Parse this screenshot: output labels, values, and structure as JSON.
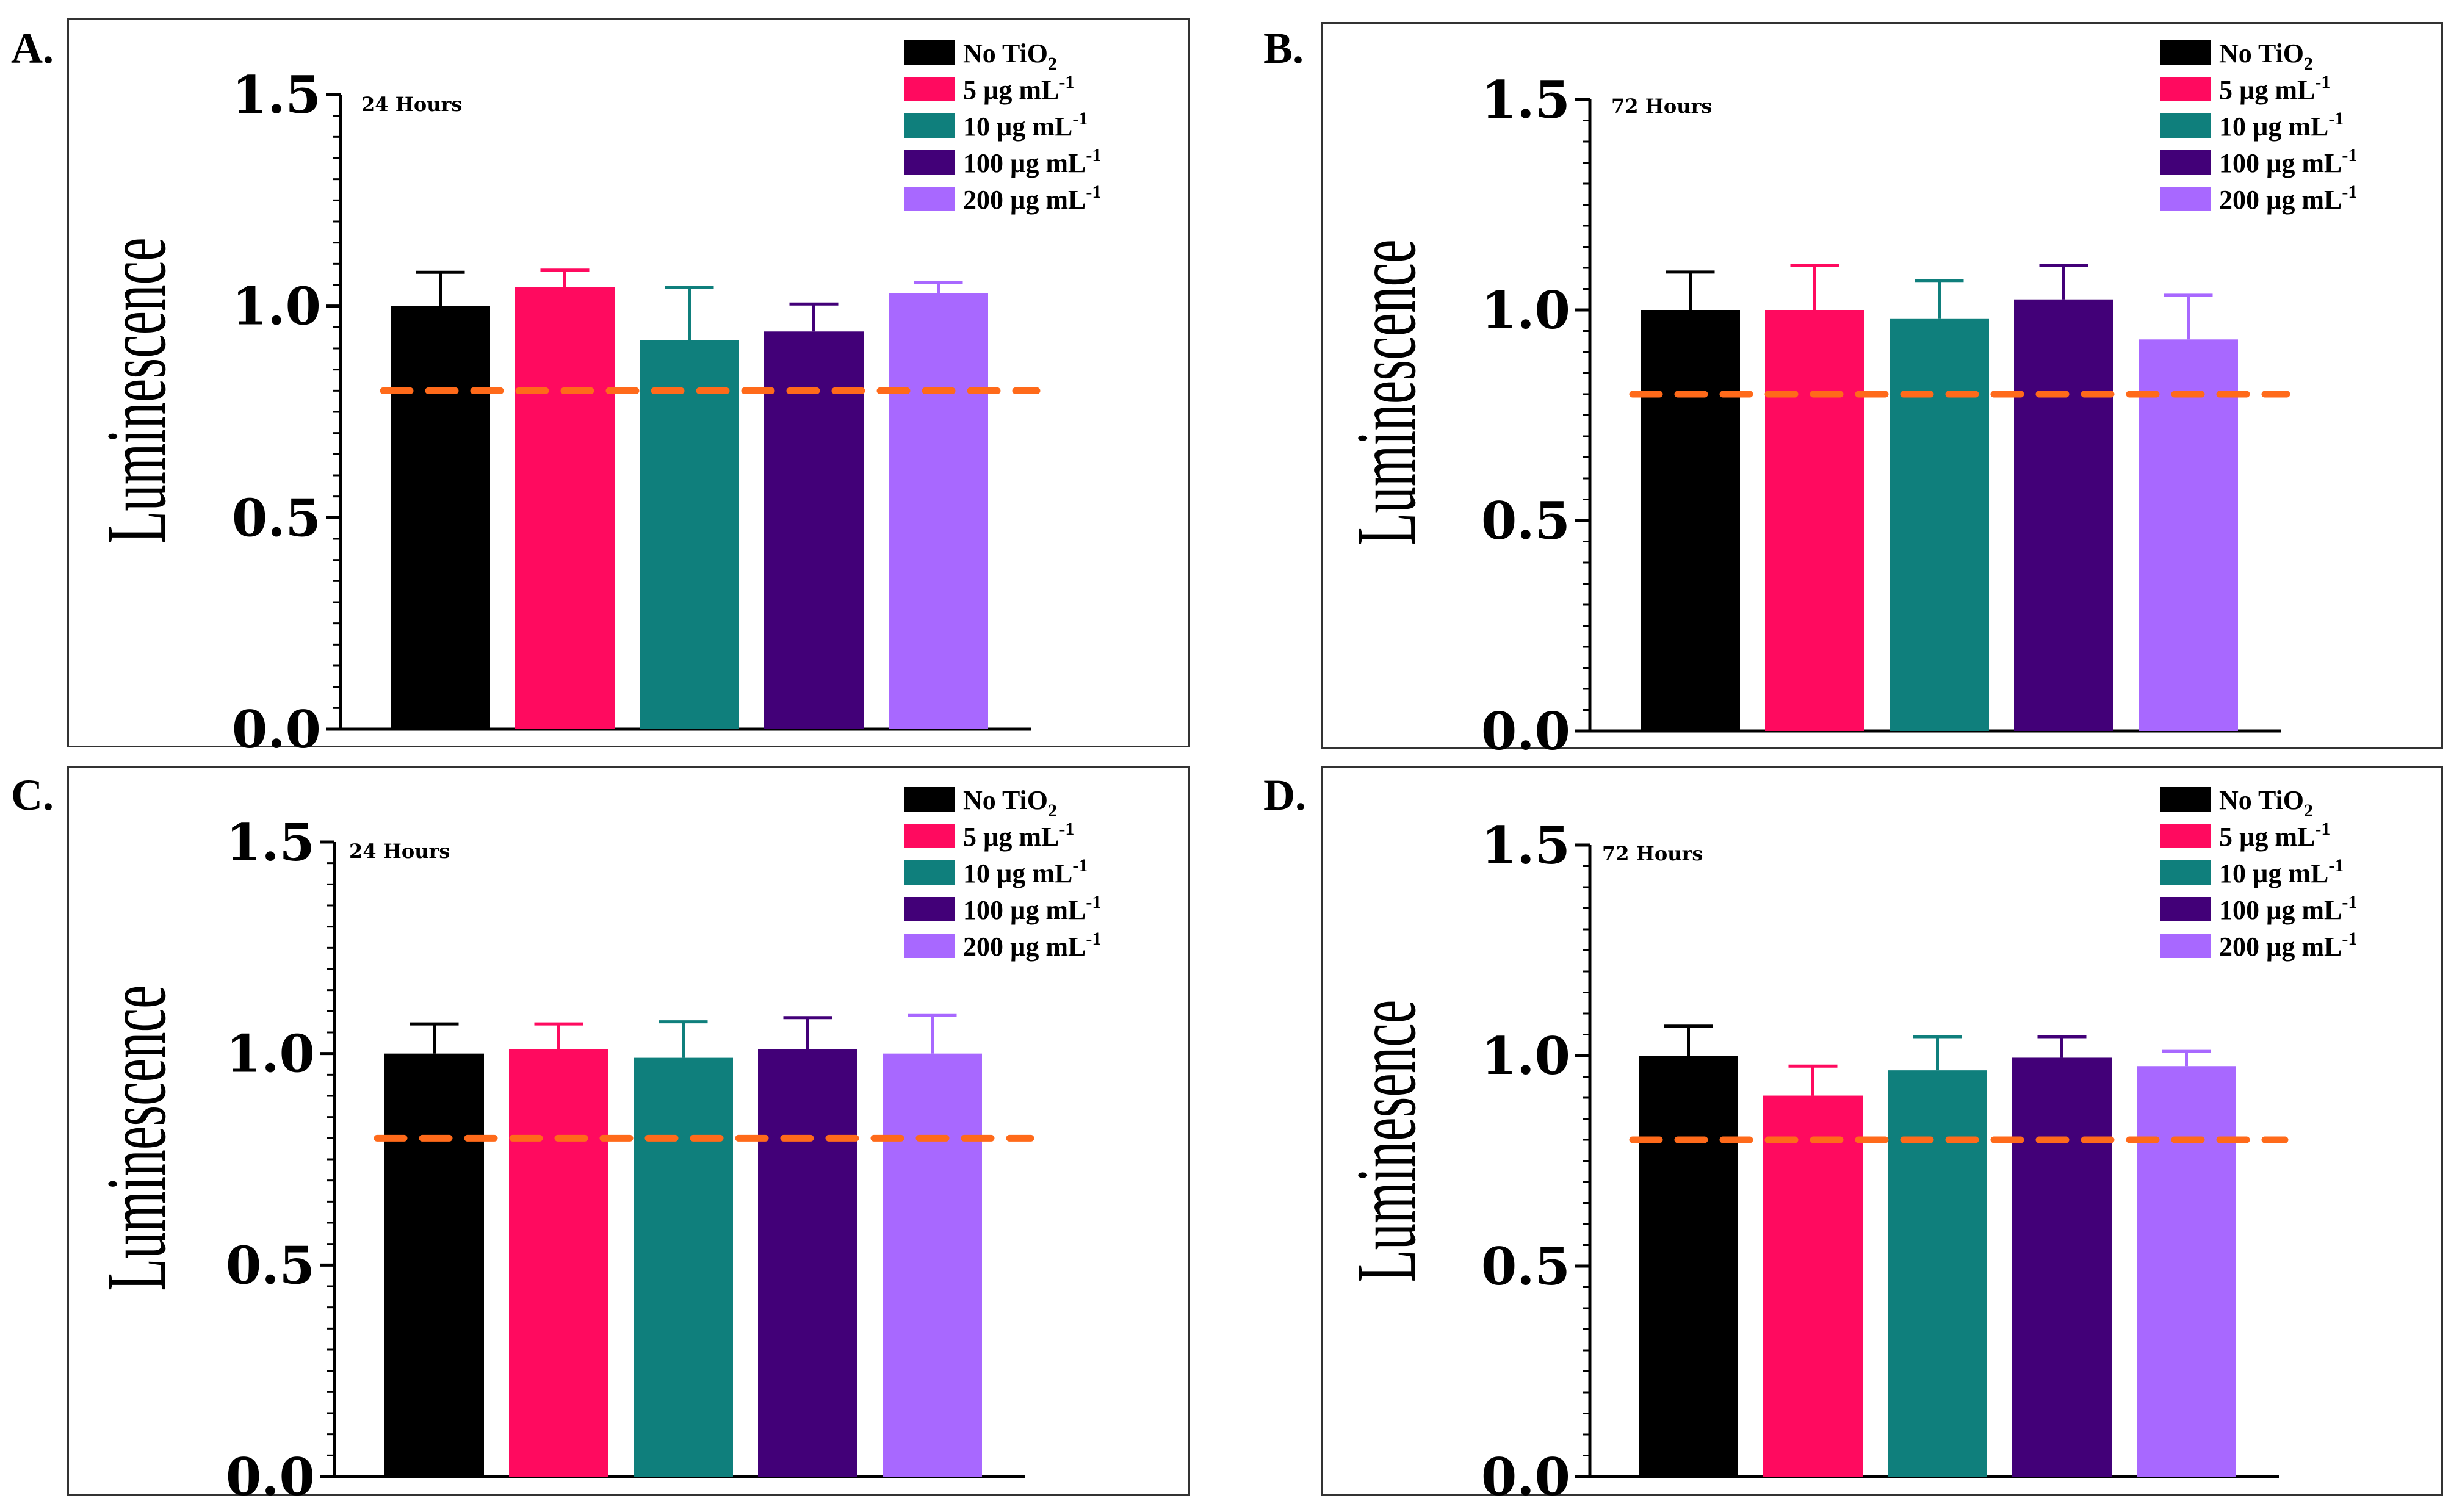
{
  "panels": [
    {
      "letter": "A.",
      "frame": "a"
    },
    {
      "letter": "B.",
      "frame": "b"
    },
    {
      "letter": "C.",
      "frame": "c"
    },
    {
      "letter": "D.",
      "frame": "d"
    }
  ],
  "colors": {
    "no_tio2": "#000000",
    "5ug": "#ff0a5f",
    "10ug": "#0f7f7c",
    "100ug": "#420078",
    "200ug": "#a868ff",
    "threshold_line": "#ff6a1a"
  },
  "legend_labels": [
    {
      "main": "No TiO",
      "sub": "2",
      "sup": ""
    },
    {
      "main": "5 µg mL",
      "sub": "",
      "sup": "-1"
    },
    {
      "main": "10 µg mL",
      "sub": "",
      "sup": "-1"
    },
    {
      "main": "100 µg mL",
      "sub": "",
      "sup": "-1"
    },
    {
      "main": "200 µg mL",
      "sub": "",
      "sup": "-1"
    }
  ],
  "chart_data": [
    {
      "type": "bar",
      "panel": "A.",
      "annotation": "24 Hours",
      "ylabel": "Luminescence",
      "ylim": [
        0,
        1.5
      ],
      "yticks": [
        "0.0",
        "0.5",
        "1.0",
        "1.5"
      ],
      "categories": [
        "No TiO2",
        "5 µg mL-1",
        "10 µg mL-1",
        "100 µg mL-1",
        "200 µg mL-1"
      ],
      "values": [
        1.0,
        1.045,
        0.92,
        0.94,
        1.03
      ],
      "errors": [
        0.08,
        0.04,
        0.125,
        0.065,
        0.025
      ],
      "threshold": 0.8,
      "legend": "top-right"
    },
    {
      "type": "bar",
      "panel": "B.",
      "annotation": "72 Hours",
      "ylabel": "Luminescence",
      "ylim": [
        0,
        1.5
      ],
      "yticks": [
        "0.0",
        "0.5",
        "1.0",
        "1.5"
      ],
      "categories": [
        "No TiO2",
        "5 µg mL-1",
        "10 µg mL-1",
        "100 µg mL-1",
        "200 µg mL-1"
      ],
      "values": [
        1.0,
        1.0,
        0.98,
        1.025,
        0.93
      ],
      "errors": [
        0.09,
        0.105,
        0.09,
        0.08,
        0.105
      ],
      "threshold": 0.8,
      "legend": "top-right"
    },
    {
      "type": "bar",
      "panel": "C.",
      "annotation": "24 Hours",
      "ylabel": "Luminescence",
      "ylim": [
        0,
        1.5
      ],
      "yticks": [
        "0.0",
        "0.5",
        "1.0",
        "1.5"
      ],
      "categories": [
        "No TiO2",
        "5 µg mL-1",
        "10 µg mL-1",
        "100 µg mL-1",
        "200 µg mL-1"
      ],
      "values": [
        1.0,
        1.01,
        0.99,
        1.01,
        1.0
      ],
      "errors": [
        0.07,
        0.06,
        0.085,
        0.075,
        0.09
      ],
      "threshold": 0.8,
      "legend": "top-right"
    },
    {
      "type": "bar",
      "panel": "D.",
      "annotation": "72 Hours",
      "ylabel": "Luminesence",
      "ylim": [
        0,
        1.5
      ],
      "yticks": [
        "0.0",
        "0.5",
        "1.0",
        "1.5"
      ],
      "categories": [
        "No TiO2",
        "5 µg mL-1",
        "10 µg mL-1",
        "100 µg mL-1",
        "200 µg mL-1"
      ],
      "values": [
        1.0,
        0.905,
        0.965,
        0.995,
        0.975
      ],
      "errors": [
        0.07,
        0.07,
        0.08,
        0.05,
        0.035
      ],
      "threshold": 0.8,
      "legend": "top-right"
    }
  ]
}
